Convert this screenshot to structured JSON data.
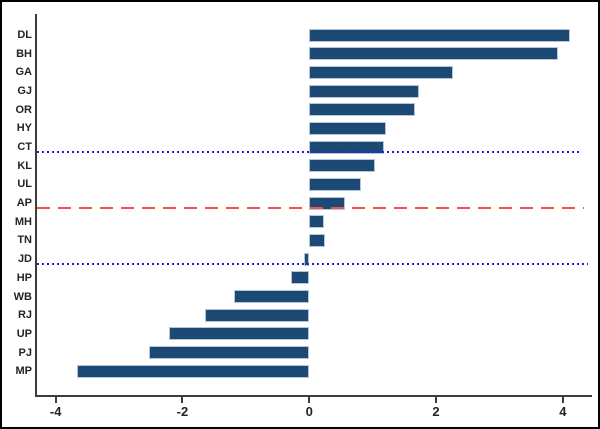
{
  "chart_data": {
    "type": "bar",
    "orientation": "horizontal",
    "title": "",
    "xlabel": "",
    "ylabel": "",
    "categories": [
      "DL",
      "BH",
      "GA",
      "GJ",
      "OR",
      "HY",
      "CT",
      "KL",
      "UL",
      "AP",
      "MH",
      "TN",
      "JD",
      "HP",
      "WB",
      "RJ",
      "UP",
      "PJ",
      "MP"
    ],
    "values": [
      4.11,
      3.93,
      2.27,
      1.73,
      1.67,
      1.21,
      1.18,
      1.03,
      0.81,
      0.57,
      0.24,
      0.25,
      -0.09,
      -0.29,
      -1.19,
      -1.65,
      -2.22,
      -2.53,
      -3.66
    ],
    "x_ticks": {
      "values": [
        -4,
        -2,
        0,
        2,
        4
      ],
      "labels": [
        "-4",
        "-2",
        "0",
        "2",
        "4"
      ]
    },
    "xlim": [
      -4.31,
      4.46
    ],
    "grid": false,
    "legend": "none",
    "ref_lines": [
      {
        "at_category": "CT",
        "style": "dotted",
        "color": "#2323dc",
        "x_start": -4.29,
        "x_end": 4.28
      },
      {
        "at_category": "AP",
        "style": "dashed",
        "color": "#f2544c",
        "x_start": -4.29,
        "x_end": 4.34
      },
      {
        "at_category": "JD",
        "style": "dotted",
        "color": "#2323dc",
        "x_start": -4.29,
        "x_end": 4.4
      }
    ],
    "colors": {
      "bar_fill": "#1d4a74",
      "bar_border": "#b6c6da",
      "axis": "#3c3c3c",
      "text": "#242424",
      "blue_ref": "#2323dc",
      "red_ref": "#f2544c"
    }
  }
}
